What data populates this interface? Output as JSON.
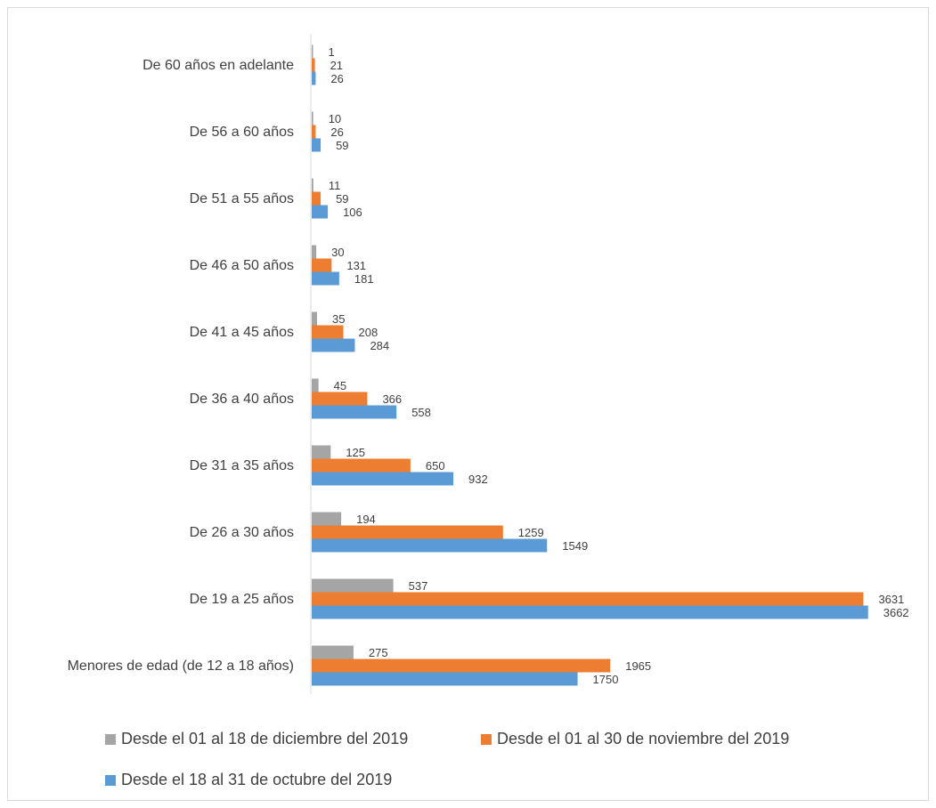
{
  "chart_data": {
    "type": "bar",
    "orientation": "horizontal",
    "categories": [
      "Menores de edad (de 12 a 18 años)",
      "De 19 a 25 años",
      "De 26 a 30 años",
      "De 31 a 35 años",
      "De 36 a 40 años",
      "De 41 a 45 años",
      "De 46 a 50 años",
      "De 51 a 55 años",
      "De 56 a 60 años",
      "De 60 años en adelante"
    ],
    "series": [
      {
        "name": "Desde el 01 al 18 de diciembre del 2019",
        "color": "#a5a5a5",
        "values": [
          275,
          537,
          194,
          125,
          45,
          35,
          30,
          11,
          10,
          1
        ]
      },
      {
        "name": "Desde el 01 al 30 de noviembre del 2019",
        "color": "#ed7d31",
        "values": [
          1965,
          3631,
          1259,
          650,
          366,
          208,
          131,
          59,
          26,
          21
        ]
      },
      {
        "name": "Desde el 18 al 31 de octubre del 2019",
        "color": "#5b9bd5",
        "values": [
          1750,
          3662,
          1549,
          932,
          558,
          284,
          181,
          106,
          59,
          26
        ]
      }
    ],
    "title": "",
    "xlabel": "",
    "ylabel": "",
    "xlim": [
      0,
      3700
    ],
    "grid": false,
    "legend_position": "bottom",
    "data_labels": true
  }
}
